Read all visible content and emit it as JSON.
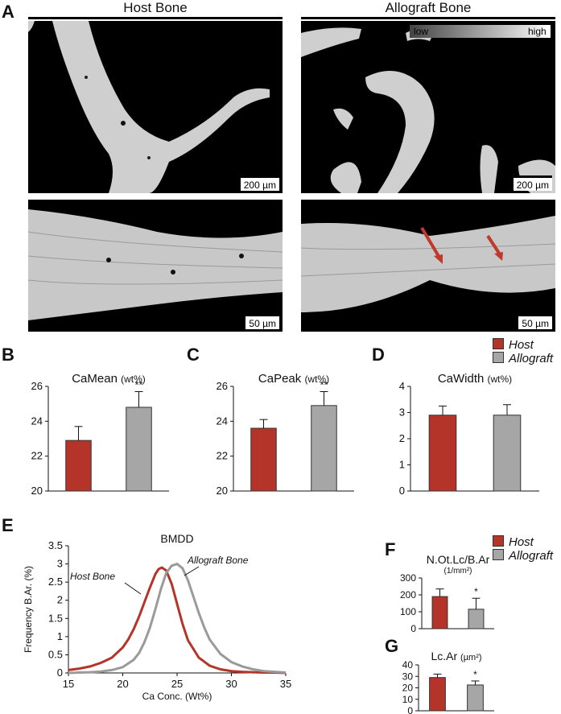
{
  "panel_letters": {
    "a": "A",
    "b": "B",
    "c": "C",
    "d": "D",
    "e": "E",
    "f": "F",
    "g": "G"
  },
  "headers": {
    "host": "Host Bone",
    "allograft": "Allograft Bone"
  },
  "gradient_legend": {
    "low": "low",
    "high": "high"
  },
  "scale_bars": {
    "top_left": "200 µm",
    "top_right": "200 µm",
    "bottom_left": "50 µm",
    "bottom_right": "50 µm"
  },
  "legend": {
    "host": "Host",
    "allograft": "Allograft",
    "host_color": "#b5342a",
    "allograft_color": "#a6a6a6"
  },
  "colors": {
    "host": "#b5342a",
    "allograft": "#a6a6a6",
    "host_line": "#b5342a",
    "allograft_line": "#9a9a9a"
  },
  "chart_data": [
    {
      "id": "B",
      "type": "bar",
      "title": "CaMean",
      "unit": "(wt%)",
      "categories": [
        "Host",
        "Allograft"
      ],
      "values": [
        22.9,
        24.8
      ],
      "errors": [
        0.8,
        0.9
      ],
      "ylim": [
        20,
        26
      ],
      "yticks": [
        20,
        22,
        24,
        26
      ],
      "annotations": [
        "",
        "**"
      ]
    },
    {
      "id": "C",
      "type": "bar",
      "title": "CaPeak",
      "unit": "(wt%)",
      "categories": [
        "Host",
        "Allograft"
      ],
      "values": [
        23.6,
        24.9
      ],
      "errors": [
        0.5,
        0.8
      ],
      "ylim": [
        20,
        26
      ],
      "yticks": [
        20,
        22,
        24,
        26
      ],
      "annotations": [
        "",
        "**"
      ]
    },
    {
      "id": "D",
      "type": "bar",
      "title": "CaWidth",
      "unit": "(wt%)",
      "categories": [
        "Host",
        "Allograft"
      ],
      "values": [
        2.9,
        2.9
      ],
      "errors": [
        0.35,
        0.4
      ],
      "ylim": [
        0,
        4
      ],
      "yticks": [
        0,
        1,
        2,
        3,
        4
      ],
      "annotations": [
        "",
        ""
      ]
    },
    {
      "id": "E",
      "type": "line",
      "title": "BMDD",
      "xlabel": "Ca Conc. (Wt%)",
      "ylabel": "Frequency B.Ar. (%)",
      "xlim": [
        15,
        35
      ],
      "ylim": [
        0,
        3.5
      ],
      "xticks": [
        15,
        20,
        25,
        30,
        35
      ],
      "yticks": [
        0,
        0.5,
        1,
        1.5,
        2,
        2.5,
        3,
        3.5
      ],
      "series": [
        {
          "name": "Host Bone",
          "x": [
            15,
            16,
            17,
            18,
            19,
            20,
            20.5,
            21,
            21.5,
            22,
            22.5,
            23,
            23.3,
            23.6,
            24,
            24.5,
            25,
            25.5,
            26,
            27,
            28,
            29,
            30,
            31,
            32,
            33,
            34,
            35
          ],
          "y": [
            0.08,
            0.12,
            0.18,
            0.28,
            0.42,
            0.7,
            0.92,
            1.2,
            1.55,
            1.95,
            2.35,
            2.72,
            2.86,
            2.9,
            2.82,
            2.45,
            1.9,
            1.35,
            0.9,
            0.42,
            0.2,
            0.1,
            0.05,
            0.03,
            0.02,
            0.01,
            0.01,
            0.0
          ]
        },
        {
          "name": "Allograft Bone",
          "x": [
            15,
            16,
            17,
            18,
            19,
            20,
            21,
            21.5,
            22,
            22.5,
            23,
            23.5,
            24,
            24.5,
            25,
            25.5,
            26,
            26.5,
            27,
            27.5,
            28,
            29,
            30,
            31,
            32,
            33,
            34,
            35
          ],
          "y": [
            0.0,
            0.01,
            0.02,
            0.04,
            0.08,
            0.16,
            0.36,
            0.55,
            0.85,
            1.25,
            1.75,
            2.3,
            2.75,
            2.95,
            3.0,
            2.88,
            2.55,
            2.1,
            1.65,
            1.25,
            0.92,
            0.52,
            0.3,
            0.18,
            0.1,
            0.05,
            0.03,
            0.01
          ]
        }
      ]
    },
    {
      "id": "F",
      "type": "bar",
      "title": "N.Ot.Lc/B.Ar",
      "unit": "(1/mm²)",
      "categories": [
        "Host",
        "Allograft"
      ],
      "values": [
        190,
        115
      ],
      "errors": [
        45,
        65
      ],
      "ylim": [
        0,
        300
      ],
      "yticks": [
        0,
        100,
        200,
        300
      ],
      "annotations": [
        "",
        "*"
      ]
    },
    {
      "id": "G",
      "type": "bar",
      "title": "Lc.Ar",
      "unit": "(µm²)",
      "categories": [
        "Host",
        "Allograft"
      ],
      "values": [
        29,
        22.5
      ],
      "errors": [
        3,
        3.5
      ],
      "ylim": [
        0,
        40
      ],
      "yticks": [
        0,
        10,
        20,
        30,
        40
      ],
      "annotations": [
        "",
        "*"
      ]
    }
  ]
}
